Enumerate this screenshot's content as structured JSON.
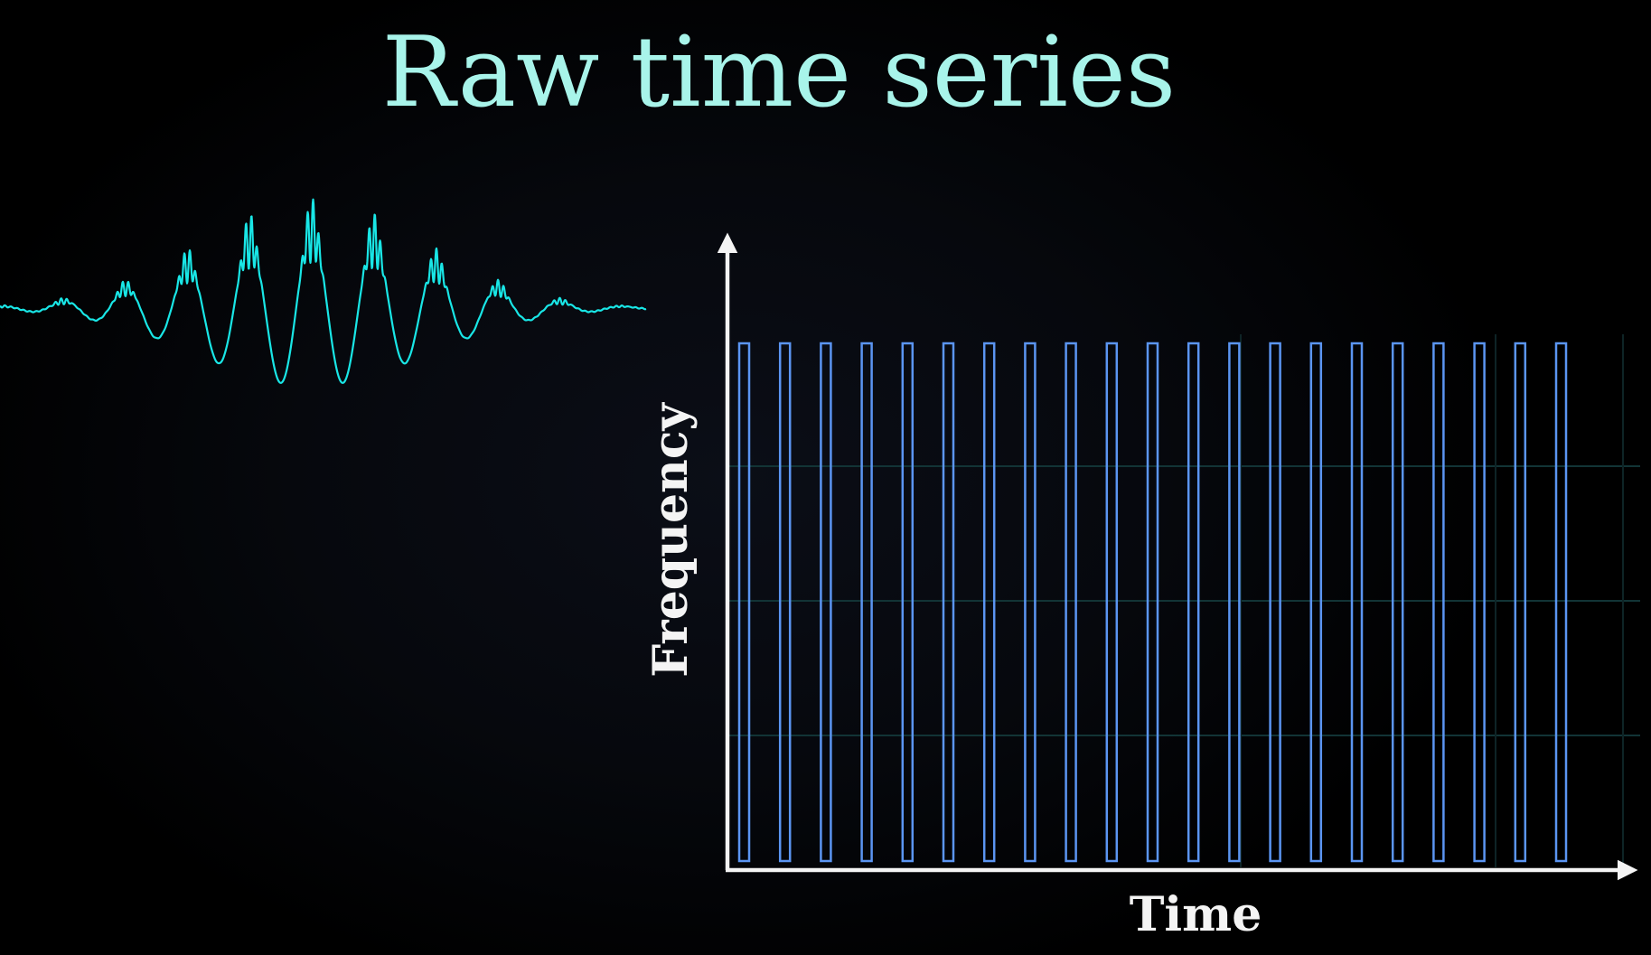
{
  "title": "Raw time series",
  "colors": {
    "background": "#000000",
    "title": "#a8f4ea",
    "waveform": "#19e6e6",
    "bars": "#5b95f2",
    "axes": "#f4f4f4",
    "grid": "#123436"
  },
  "waveform": {
    "description_only": false,
    "envelope_peaks": 9
  },
  "spectrogram": {
    "x_axis_label": "Time",
    "y_axis_label": "Frequency",
    "bar_count": 21,
    "bar_fill_fraction": 1.0
  }
}
